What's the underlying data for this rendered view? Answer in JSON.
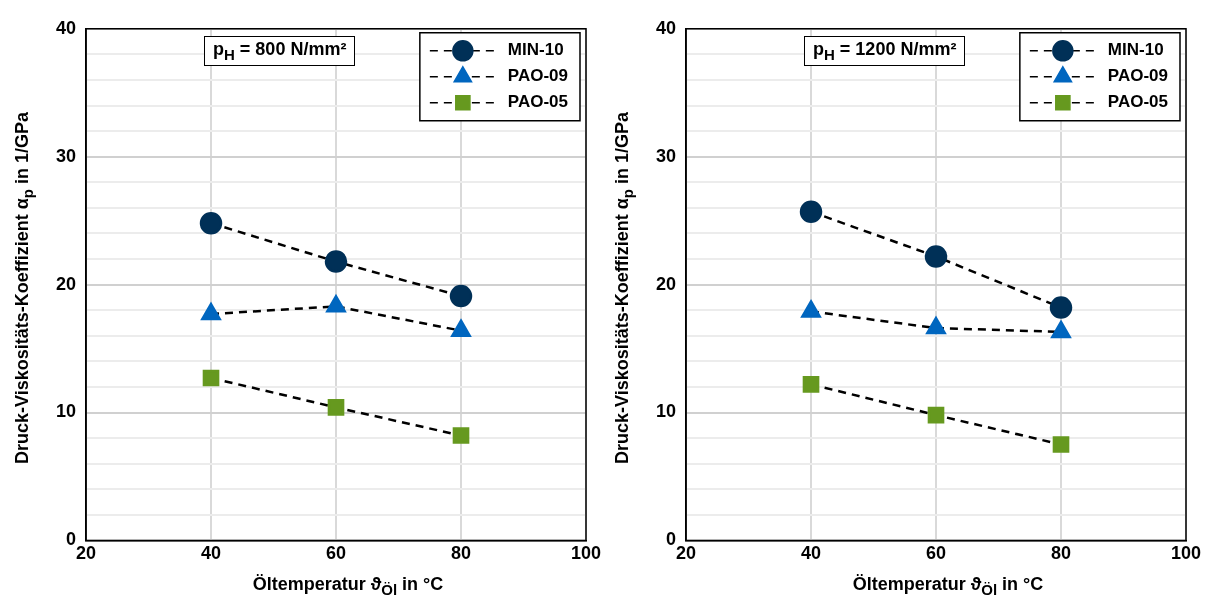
{
  "chart_data": [
    {
      "type": "line",
      "annotations": [
        "p$_{H}$ = 800 N/mm²"
      ],
      "xlabel": "Öltemperatur ϑ$_{Öl}$ in °C",
      "ylabel": "Druck-Viskositäts-Koeffizient α$_{p}$ in 1/GPa",
      "x": [
        40,
        60,
        80
      ],
      "xlim": [
        20,
        100
      ],
      "xticks": [
        20,
        40,
        60,
        80,
        100
      ],
      "ylim": [
        0,
        40
      ],
      "yticks": [
        0,
        {
          "value": 2,
          "label": null
        },
        {
          "value": 4,
          "label": null
        },
        {
          "value": 6,
          "label": null
        },
        {
          "value": 8,
          "label": null
        },
        10,
        {
          "value": 12,
          "label": null
        },
        {
          "value": 14,
          "label": null
        },
        {
          "value": 16,
          "label": null
        },
        {
          "value": 18,
          "label": null
        },
        20,
        {
          "value": 22,
          "label": null
        },
        {
          "value": 24,
          "label": null
        },
        {
          "value": 26,
          "label": null
        },
        {
          "value": 28,
          "label": null
        },
        30,
        {
          "value": 32,
          "label": null
        },
        {
          "value": 34,
          "label": null
        },
        {
          "value": 36,
          "label": null
        },
        {
          "value": 38,
          "label": null
        },
        40
      ],
      "grid": true,
      "legend": "top right",
      "line_style": "dashed",
      "series": [
        {
          "name": "MIN-10",
          "color": "#003057",
          "marker": "circle",
          "values": [
            24.8,
            21.8,
            19.1
          ]
        },
        {
          "name": "PAO-09",
          "color": "#0066bf",
          "marker": "triangle",
          "values": [
            17.7,
            18.3,
            16.4
          ]
        },
        {
          "name": "PAO-05",
          "color": "#66991f",
          "marker": "square",
          "values": [
            12.7,
            10.4,
            8.2
          ]
        }
      ]
    },
    {
      "type": "line",
      "annotations": [
        "p$_{H}$ = 1200 N/mm²"
      ],
      "xlabel": "Öltemperatur ϑ$_{Öl}$ in °C",
      "ylabel": "Druck-Viskositäts-Koeffizient α$_{p}$ in 1/GPa",
      "x": [
        40,
        60,
        80
      ],
      "xlim": [
        20,
        100
      ],
      "xticks": [
        20,
        40,
        60,
        80,
        100
      ],
      "ylim": [
        0,
        40
      ],
      "yticks": [
        0,
        {
          "value": 2,
          "label": null
        },
        {
          "value": 4,
          "label": null
        },
        {
          "value": 6,
          "label": null
        },
        {
          "value": 8,
          "label": null
        },
        10,
        {
          "value": 12,
          "label": null
        },
        {
          "value": 14,
          "label": null
        },
        {
          "value": 16,
          "label": null
        },
        {
          "value": 18,
          "label": null
        },
        20,
        {
          "value": 22,
          "label": null
        },
        {
          "value": 24,
          "label": null
        },
        {
          "value": 26,
          "label": null
        },
        {
          "value": 28,
          "label": null
        },
        30,
        {
          "value": 32,
          "label": null
        },
        {
          "value": 34,
          "label": null
        },
        {
          "value": 36,
          "label": null
        },
        {
          "value": 38,
          "label": null
        },
        40
      ],
      "grid": true,
      "legend": "top right",
      "line_style": "dashed",
      "series": [
        {
          "name": "MIN-10",
          "color": "#003057",
          "marker": "circle",
          "values": [
            25.7,
            22.2,
            18.2
          ]
        },
        {
          "name": "PAO-09",
          "color": "#0066bf",
          "marker": "triangle",
          "values": [
            17.9,
            16.6,
            16.3
          ]
        },
        {
          "name": "PAO-05",
          "color": "#66991f",
          "marker": "square",
          "values": [
            12.2,
            9.8,
            7.5
          ]
        }
      ]
    }
  ]
}
